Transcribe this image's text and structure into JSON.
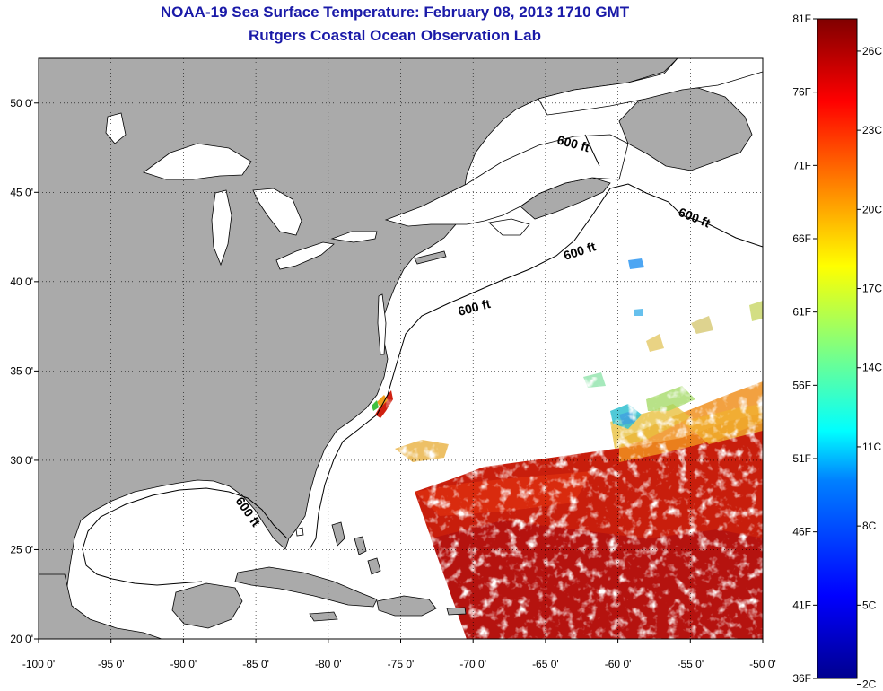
{
  "title_line1": "NOAA-19 Sea Surface Temperature:  February 08, 2013 1710 GMT",
  "title_line2": "Rutgers Coastal Ocean Observation Lab",
  "map": {
    "lon_range": [
      -100,
      -50
    ],
    "lat_range": [
      20,
      52.5
    ],
    "lon_ticks": [
      {
        "v": -100,
        "label": "-100 0'"
      },
      {
        "v": -95,
        "label": "-95 0'"
      },
      {
        "v": -90,
        "label": "-90 0'"
      },
      {
        "v": -85,
        "label": "-85 0'"
      },
      {
        "v": -80,
        "label": "-80 0'"
      },
      {
        "v": -75,
        "label": "-75 0'"
      },
      {
        "v": -70,
        "label": "-70 0'"
      },
      {
        "v": -65,
        "label": "-65 0'"
      },
      {
        "v": -60,
        "label": "-60 0'"
      },
      {
        "v": -55,
        "label": "-55 0'"
      },
      {
        "v": -50,
        "label": "-50 0'"
      }
    ],
    "lat_ticks": [
      {
        "v": 20,
        "label": "20 0'"
      },
      {
        "v": 25,
        "label": "25 0'"
      },
      {
        "v": 30,
        "label": "30 0'"
      },
      {
        "v": 35,
        "label": "35 0'"
      },
      {
        "v": 40,
        "label": "40 0'"
      },
      {
        "v": 45,
        "label": "45 0'"
      },
      {
        "v": 50,
        "label": "50 0'"
      }
    ],
    "contour_label": "600 ft",
    "colors": {
      "land": "#aaaaaa",
      "ocean": "#ffffff",
      "grid": "#000000"
    }
  },
  "colorbar": {
    "range_f": [
      36,
      81
    ],
    "range_c": [
      2,
      27
    ],
    "f_ticks": [
      "81F",
      "76F",
      "71F",
      "66F",
      "61F",
      "56F",
      "51F",
      "46F",
      "41F",
      "36F"
    ],
    "c_ticks": [
      "26C",
      "23C",
      "20C",
      "17C",
      "14C",
      "11C",
      "8C",
      "5C",
      "2C"
    ],
    "colormap": [
      "#00008f",
      "#0000ff",
      "#0080ff",
      "#00ffff",
      "#80ff80",
      "#ffff00",
      "#ff8000",
      "#ff0000",
      "#800000"
    ]
  }
}
